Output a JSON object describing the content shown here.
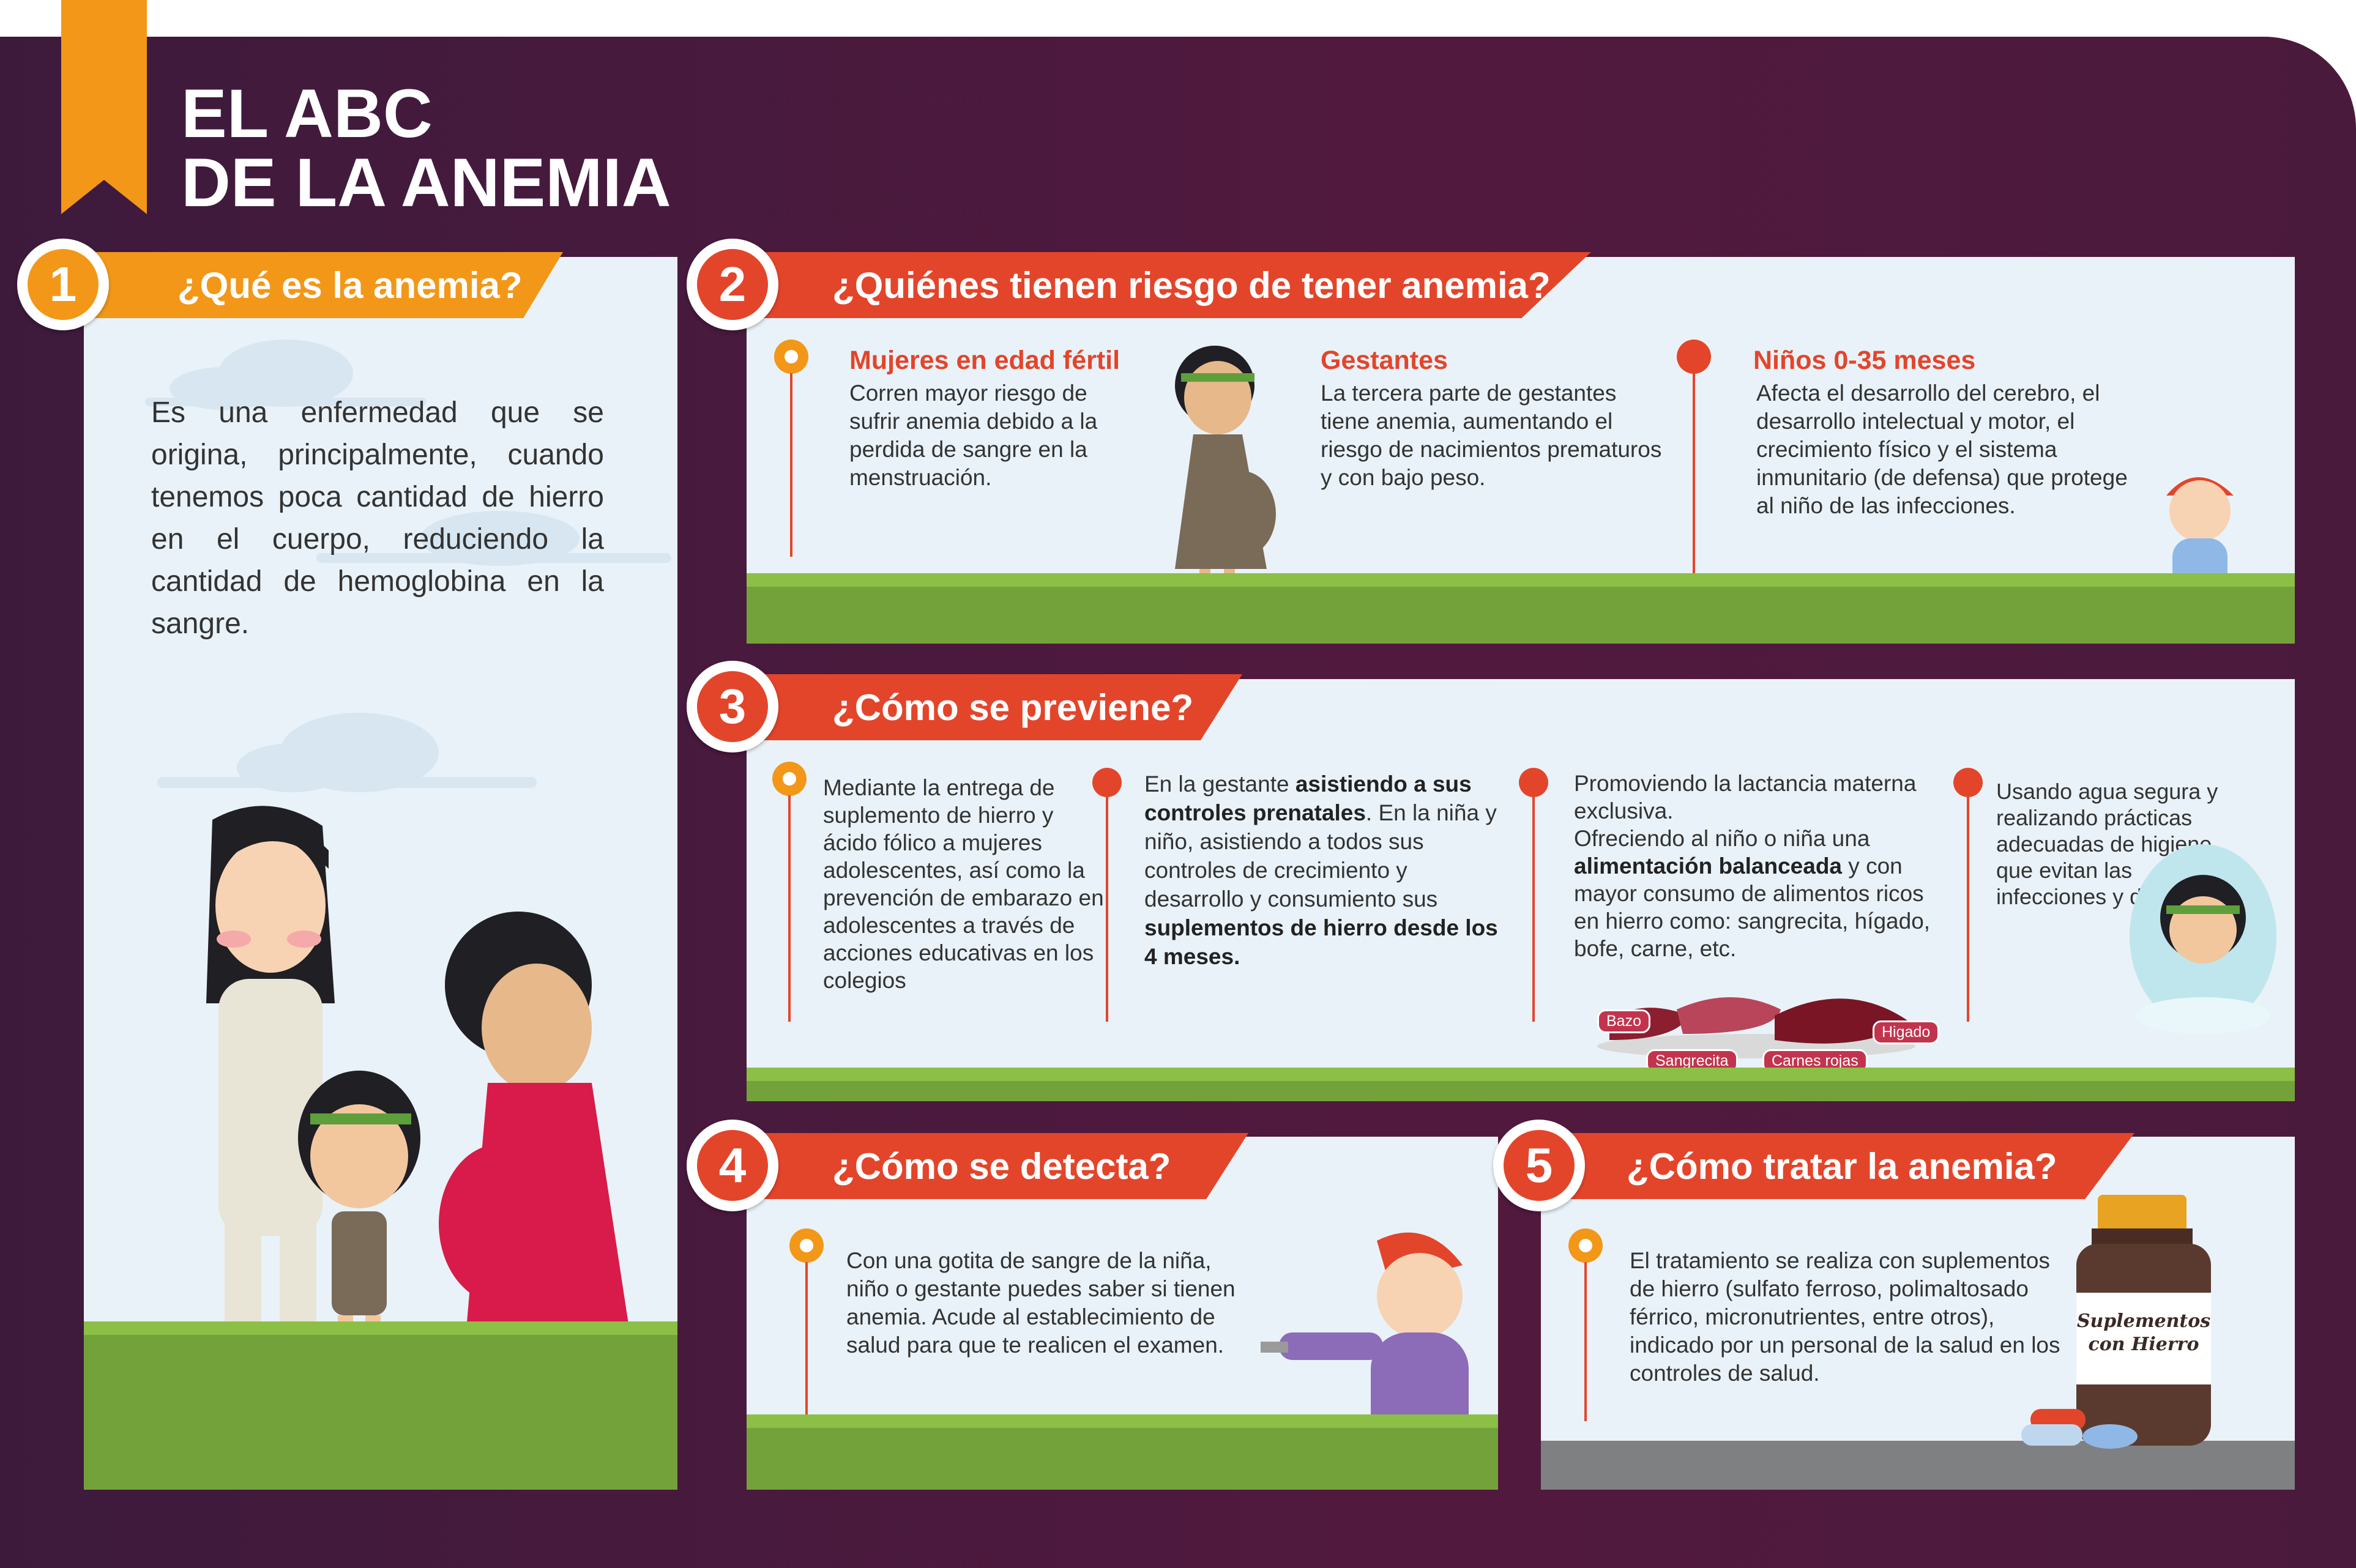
{
  "title": {
    "line1": "EL ABC",
    "line2": "DE LA ANEMIA"
  },
  "sections": [
    {
      "number": "1",
      "heading": "¿Qué es la anemia?",
      "body": "Es una enfermedad que se origina, principalmente, cuando tenemos poca cantidad de hierro en el cuerpo, reduciendo la cantidad de hemoglobina en la sangre."
    },
    {
      "number": "2",
      "heading": "¿Quiénes tienen riesgo de tener anemia?",
      "groups": [
        {
          "title": "Mujeres en edad fértil",
          "text": "Corren mayor riesgo de sufrir anemia debido a la perdida de sangre en la menstruación."
        },
        {
          "title": "Gestantes",
          "text": "La tercera parte de gestantes tiene anemia, aumentando el riesgo de nacimientos prematuros y con bajo peso."
        },
        {
          "title": "Niños 0-35 meses",
          "text": "Afecta el desarrollo del cerebro, el desarrollo intelectual y motor, el crecimiento físico y el sistema inmunitario (de defensa) que protege al niño de las infecciones."
        }
      ]
    },
    {
      "number": "3",
      "heading": "¿Cómo se previene?",
      "items": [
        {
          "text": "Mediante la entrega de suplemento de hierro y ácido fólico a mujeres adolescentes, así como la prevención de embarazo en adolescentes a través de acciones educativas en los colegios"
        },
        {
          "p1": "En la gestante ",
          "b1": "asistiendo a sus controles prenatales",
          "p2": ". En la niña y niño, asistiendo a todos sus controles de crecimiento y desarrollo y consumiento sus ",
          "b2": "suplementos de hierro desde los 4 meses."
        },
        {
          "p1": "Promoviendo la lactancia materna exclusiva.",
          "p2": "Ofreciendo al niño o niña una ",
          "b1": "alimentación balanceada",
          "p3": " y con mayor consumo de alimentos ricos en hierro como: sangrecita, hígado, bofe, carne, etc."
        },
        {
          "text": "Usando agua segura y realizando prácticas adecuadas de higiene que evitan las infecciones y diarreas."
        }
      ],
      "food_labels": [
        "Bazo",
        "Sangrecita",
        "Carnes rojas",
        "Higado"
      ]
    },
    {
      "number": "4",
      "heading": "¿Cómo se detecta?",
      "body": "Con una gotita de sangre de la niña, niño o gestante puedes saber si tienen anemia. Acude al establecimiento de salud para que te realicen el examen."
    },
    {
      "number": "5",
      "heading": "¿Cómo tratar la anemia?",
      "body": "El tratamiento se realiza con suplementos de hierro (sulfato ferroso, polimaltosado férrico, micronutrientes, entre otros), indicado por un personal de la salud en los controles de salud.",
      "bottle_label": [
        "Suplementos",
        "con Hierro"
      ]
    }
  ],
  "colors": {
    "orange": "#f39719",
    "red": "#e3452b",
    "purple": "#4a1a3c",
    "panel": "#e9f2f8",
    "grass": "#74a23a"
  }
}
